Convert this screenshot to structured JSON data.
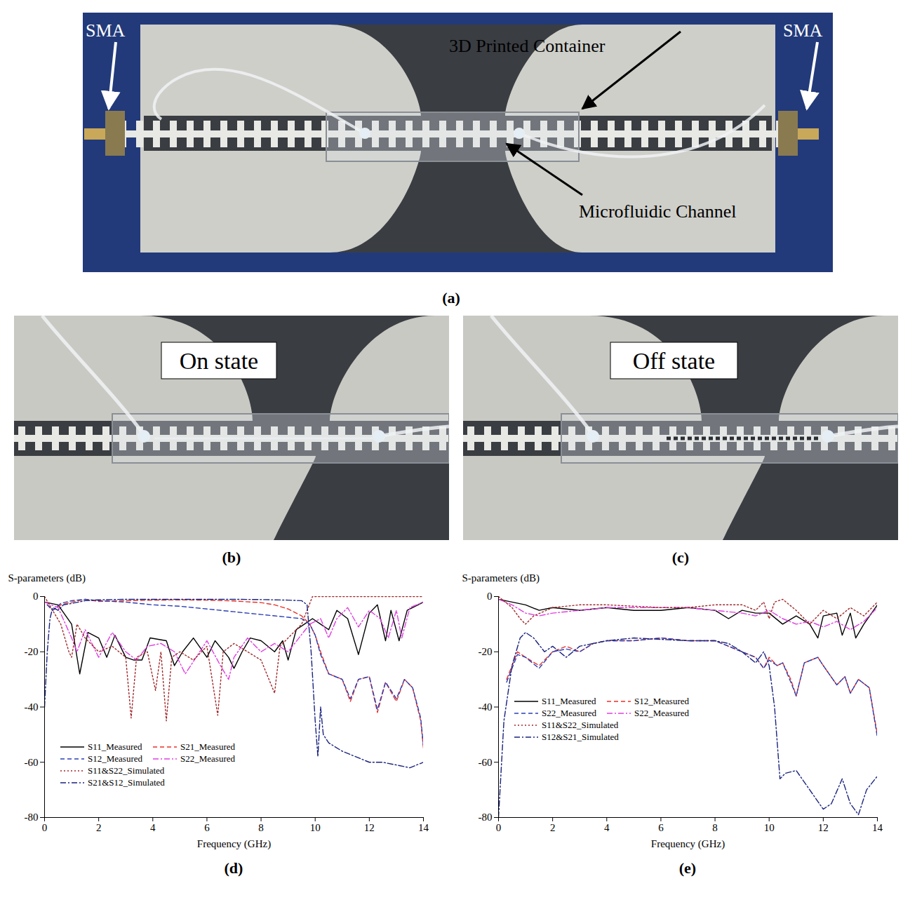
{
  "panels": {
    "a": {
      "caption": "(a)",
      "annotations": [
        "SMA",
        "SMA",
        "3D Printed Container",
        "Microfluidic Channel"
      ]
    },
    "b": {
      "caption": "(b)",
      "text": "On state"
    },
    "c": {
      "caption": "(c)",
      "text": "Off state"
    }
  },
  "chart_data": [
    {
      "type": "line",
      "caption": "(d)",
      "ylabel": "S-parameters (dB)",
      "xlabel": "Frequency (GHz)",
      "xlim": [
        0,
        14
      ],
      "xticks": [
        0,
        2,
        4,
        6,
        8,
        10,
        12,
        14
      ],
      "ylim": [
        -80,
        0
      ],
      "yticks": [
        -80,
        -60,
        -40,
        -20,
        0
      ],
      "grid": false,
      "legend": "lower left",
      "series": [
        {
          "name": "S11_Measured",
          "color": "#000000",
          "line_style": "solid",
          "x": [
            0,
            0.5,
            1,
            1.3,
            1.6,
            2,
            2.3,
            2.6,
            3,
            3.3,
            3.6,
            3.9,
            4.5,
            4.8,
            5.1,
            5.5,
            6,
            6.3,
            6.8,
            7,
            7.3,
            7.6,
            8,
            8.5,
            8.8,
            9,
            9.3,
            9.6,
            9.9,
            10.2,
            10.5,
            10.8,
            11.2,
            11.6,
            12,
            12.3,
            12.6,
            12.8,
            13.1,
            13.4,
            13.8,
            14
          ],
          "values": [
            -2,
            -3,
            -10,
            -28,
            -13,
            -15,
            -22,
            -14,
            -22,
            -23,
            -23,
            -15,
            -16,
            -25,
            -20,
            -15,
            -22,
            -16,
            -22,
            -26,
            -20,
            -15,
            -16,
            -20,
            -16,
            -23,
            -12,
            -10,
            -8,
            -10,
            -12,
            -5,
            -8,
            -21,
            -6,
            -3,
            -16,
            -5,
            -16,
            -5,
            -3,
            -2
          ]
        },
        {
          "name": "S21_Measured",
          "color": "#e8322a",
          "line_style": "dashed",
          "x": [
            0.1,
            0.3,
            0.6,
            1,
            1.5,
            2,
            3,
            4,
            5,
            6,
            7,
            8,
            8.5,
            9,
            9.5,
            9.8,
            10,
            10.2,
            10.5,
            11,
            11.3,
            11.6,
            12,
            12.3,
            12.6,
            13,
            13.3,
            13.6,
            13.9,
            14
          ],
          "values": [
            -3,
            -5,
            -3,
            -2,
            -1,
            -1.8,
            -1.5,
            -1.3,
            -1.2,
            -1.3,
            -1.6,
            -2.2,
            -3,
            -4.5,
            -7,
            -10,
            -14,
            -20,
            -28,
            -30,
            -38,
            -30,
            -29,
            -42,
            -31,
            -38,
            -30,
            -33,
            -45,
            -55
          ]
        },
        {
          "name": "S12_Measured",
          "color": "#2a3fb5",
          "line_style": "dashed",
          "x": [
            0.1,
            0.3,
            0.6,
            1,
            1.5,
            2,
            3,
            4,
            5,
            6,
            7,
            8,
            8.5,
            9,
            9.5,
            9.8,
            10,
            10.2,
            10.5,
            11,
            11.3,
            11.6,
            12,
            12.3,
            12.6,
            13,
            13.3,
            13.6,
            13.9,
            14
          ],
          "values": [
            -3,
            -5,
            -2.5,
            -1.5,
            -1,
            -1.5,
            -2,
            -3,
            -3.5,
            -4.5,
            -5.5,
            -6.5,
            -7,
            -7.5,
            -8,
            -10,
            -14,
            -21,
            -28,
            -30,
            -37,
            -30,
            -29,
            -41,
            -31,
            -37,
            -30,
            -33,
            -44,
            -54
          ]
        },
        {
          "name": "S22_Measured",
          "color": "#e040e0",
          "line_style": "dashdot",
          "x": [
            0,
            0.5,
            1,
            1.2,
            1.5,
            2,
            2.5,
            3,
            3.4,
            3.8,
            4.3,
            4.8,
            5.2,
            5.6,
            6,
            6.5,
            6.8,
            7,
            7.5,
            8,
            8.5,
            9,
            9.4,
            9.8,
            10.2,
            10.5,
            10.8,
            11.2,
            11.6,
            12,
            12.4,
            12.7,
            13,
            13.2,
            13.5,
            14
          ],
          "values": [
            -2,
            -4,
            -15,
            -20,
            -12,
            -22,
            -13,
            -20,
            -23,
            -18,
            -17,
            -20,
            -28,
            -22,
            -16,
            -25,
            -30,
            -22,
            -15,
            -20,
            -17,
            -20,
            -15,
            -10,
            -8,
            -15,
            -8,
            -4,
            -11,
            -5,
            -8,
            -15,
            -5,
            -15,
            -4,
            -2
          ]
        },
        {
          "name": "S11&S22_Simulated",
          "color": "#a0282a",
          "line_style": "dotted",
          "x": [
            0,
            0.3,
            0.6,
            0.9,
            1,
            1.2,
            1.5,
            2,
            2.5,
            3,
            3.2,
            3.4,
            3.8,
            4.1,
            4.3,
            4.5,
            4.7,
            5,
            5.5,
            6,
            6.4,
            6.6,
            7,
            7.5,
            8,
            8.5,
            8.7,
            9,
            9.5,
            9.7,
            9.9,
            14
          ],
          "values": [
            0,
            -5,
            -10,
            -20,
            -22,
            -10,
            -15,
            -20,
            -18,
            -22,
            -44,
            -22,
            -20,
            -34,
            -20,
            -45,
            -22,
            -20,
            -23,
            -18,
            -43,
            -20,
            -17,
            -20,
            -23,
            -35,
            -18,
            -15,
            -10,
            -5,
            0,
            0
          ]
        },
        {
          "name": "S21&S12_Simulated",
          "color": "#1a237e",
          "line_style": "dashdot",
          "x": [
            0,
            0.1,
            0.2,
            0.3,
            0.5,
            0.7,
            1,
            1.5,
            2,
            3,
            4,
            5,
            6,
            7,
            8,
            9,
            9.5,
            9.7,
            9.85,
            10,
            10.1,
            10.2,
            10.3,
            10.5,
            11,
            11.5,
            12,
            12.5,
            13,
            13.5,
            14
          ],
          "values": [
            -40,
            -20,
            -8,
            -4,
            -5,
            -3,
            -2.5,
            -1.5,
            -1.2,
            -1,
            -1,
            -1,
            -1,
            -1,
            -1.1,
            -1.3,
            -1.5,
            -3,
            -20,
            -45,
            -58,
            -40,
            -50,
            -53,
            -56,
            -58,
            -60,
            -60,
            -61,
            -62,
            -60
          ]
        }
      ]
    },
    {
      "type": "line",
      "caption": "(e)",
      "ylabel": "S-parameters (dB)",
      "xlabel": "Frequency (GHz)",
      "xlim": [
        0,
        14
      ],
      "xticks": [
        0,
        2,
        4,
        6,
        8,
        10,
        12,
        14
      ],
      "ylim": [
        -80,
        0
      ],
      "yticks": [
        -80,
        -60,
        -40,
        -20,
        0
      ],
      "grid": false,
      "legend": "center left",
      "series": [
        {
          "name": "S11_Measured",
          "color": "#000000",
          "line_style": "solid",
          "x": [
            0,
            1,
            1.5,
            2,
            3,
            4,
            5,
            6,
            7,
            8,
            8.5,
            9,
            9.5,
            10,
            10.5,
            11,
            11.5,
            11.8,
            12,
            12.5,
            12.7,
            13,
            13.2,
            13.5,
            14
          ],
          "values": [
            -1,
            -3,
            -5,
            -4,
            -5,
            -4,
            -5,
            -5,
            -4,
            -5,
            -8,
            -5,
            -6,
            -6,
            -10,
            -7,
            -10,
            -15,
            -7,
            -6,
            -14,
            -6,
            -15,
            -10,
            -3
          ]
        },
        {
          "name": "S12_Measured",
          "color": "#e8322a",
          "line_style": "dashed",
          "x": [
            0.3,
            0.7,
            1,
            1.5,
            2,
            2.5,
            3,
            3.5,
            4,
            5,
            6,
            7,
            8,
            8.5,
            9,
            9.5,
            9.8,
            10,
            10.3,
            10.5,
            10.8,
            11,
            11.3,
            11.8,
            12,
            12.5,
            12.8,
            13,
            13.3,
            13.7,
            14
          ],
          "values": [
            -30,
            -20,
            -22,
            -25,
            -20,
            -18,
            -20,
            -17,
            -16,
            -16,
            -15,
            -16,
            -16,
            -18,
            -20,
            -22,
            -26,
            -22,
            -25,
            -24,
            -30,
            -36,
            -24,
            -22,
            -25,
            -32,
            -29,
            -35,
            -30,
            -33,
            -50
          ]
        },
        {
          "name": "S22_Measured",
          "color": "#2a3fb5",
          "line_style": "dashed",
          "x": [
            0.3,
            0.7,
            1,
            1.5,
            2,
            2.5,
            3,
            3.5,
            4,
            5,
            6,
            7,
            8,
            8.5,
            9,
            9.5,
            9.8,
            10,
            10.3,
            10.5,
            10.8,
            11,
            11.3,
            11.8,
            12,
            12.5,
            12.8,
            13,
            13.3,
            13.7,
            14
          ],
          "values": [
            -31,
            -21,
            -22,
            -26,
            -20,
            -19,
            -20,
            -17,
            -16,
            -16,
            -15,
            -16,
            -16,
            -18,
            -20,
            -22,
            -26,
            -23,
            -25,
            -24,
            -31,
            -36,
            -24,
            -22,
            -25,
            -32,
            -29,
            -35,
            -30,
            -33,
            -51
          ]
        },
        {
          "name": "S22_Measured",
          "color": "#e040e0",
          "line_style": "dashdot",
          "x": [
            0,
            0.5,
            1,
            1.5,
            2,
            3,
            4,
            5,
            6,
            7,
            8,
            9,
            9.5,
            10,
            10.5,
            11,
            11.5,
            12,
            12.5,
            13,
            13.5,
            14
          ],
          "values": [
            -1,
            -3,
            -6,
            -7,
            -6,
            -5,
            -4,
            -4,
            -4,
            -4,
            -5,
            -6,
            -7,
            -5,
            -8,
            -10,
            -9,
            -11,
            -9,
            -12,
            -9,
            -4
          ]
        },
        {
          "name": "S11&S22_Simulated",
          "color": "#a0282a",
          "line_style": "dotted",
          "x": [
            0,
            0.5,
            0.8,
            1,
            1.3,
            2,
            3,
            4,
            5,
            6,
            7,
            8,
            9,
            9.5,
            9.8,
            10,
            10.2,
            10.5,
            11,
            11.5,
            12,
            12.5,
            13,
            13.5,
            14
          ],
          "values": [
            0,
            -4,
            -8,
            -10,
            -7,
            -4,
            -3,
            -3,
            -3.5,
            -4,
            -4,
            -3,
            -3,
            -5,
            -2,
            -8,
            -2,
            -1,
            -5,
            -10,
            -5,
            -8,
            -4,
            -7,
            -2
          ]
        },
        {
          "name": "S12&S21_Simulated",
          "color": "#1a237e",
          "line_style": "dashdot",
          "x": [
            0,
            0.2,
            0.5,
            0.8,
            1,
            1.3,
            1.7,
            2,
            2.5,
            3,
            4,
            5,
            6,
            7,
            8,
            8.5,
            9,
            9.5,
            9.8,
            10,
            10.2,
            10.4,
            10.6,
            11,
            11.5,
            12,
            12.3,
            12.7,
            13,
            13.3,
            13.6,
            14
          ],
          "values": [
            -80,
            -45,
            -25,
            -15,
            -13,
            -15,
            -20,
            -18,
            -22,
            -18,
            -16,
            -15,
            -15.5,
            -16,
            -16,
            -17,
            -20,
            -24,
            -20,
            -25,
            -40,
            -66,
            -64,
            -63,
            -70,
            -77,
            -75,
            -66,
            -75,
            -79,
            -70,
            -65
          ]
        }
      ]
    }
  ]
}
